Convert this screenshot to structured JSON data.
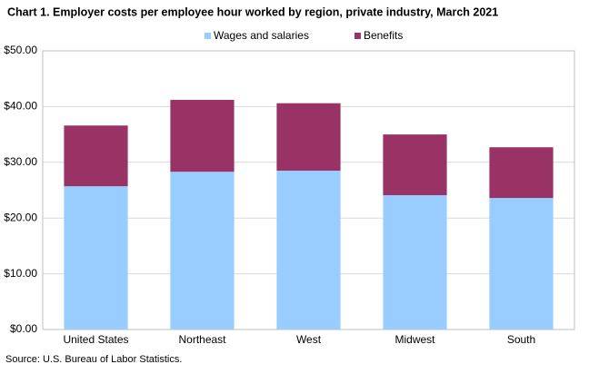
{
  "chart_data": {
    "type": "stacked_bar",
    "title": "Chart 1. Employer costs per employee hour worked by region, private industry, March 2021",
    "categories": [
      "United States",
      "Northeast",
      "West",
      "Midwest",
      "South"
    ],
    "series": [
      {
        "name": "Wages and salaries",
        "color": "#99ccff",
        "values": [
          25.7,
          28.3,
          28.5,
          24.1,
          23.6
        ]
      },
      {
        "name": "Benefits",
        "color": "#993366",
        "values": [
          10.9,
          12.9,
          12.1,
          10.9,
          9.1
        ]
      }
    ],
    "ylim": [
      0,
      50
    ],
    "yticks": [
      {
        "value": 0,
        "label": "$0.00"
      },
      {
        "value": 10,
        "label": "$10.00"
      },
      {
        "value": 20,
        "label": "$20.00"
      },
      {
        "value": 30,
        "label": "$30.00"
      },
      {
        "value": 40,
        "label": "$40.00"
      },
      {
        "value": 50,
        "label": "$50.00"
      }
    ],
    "grid": true,
    "legend": "top",
    "source": "Source: U.S. Bureau of Labor Statistics."
  }
}
